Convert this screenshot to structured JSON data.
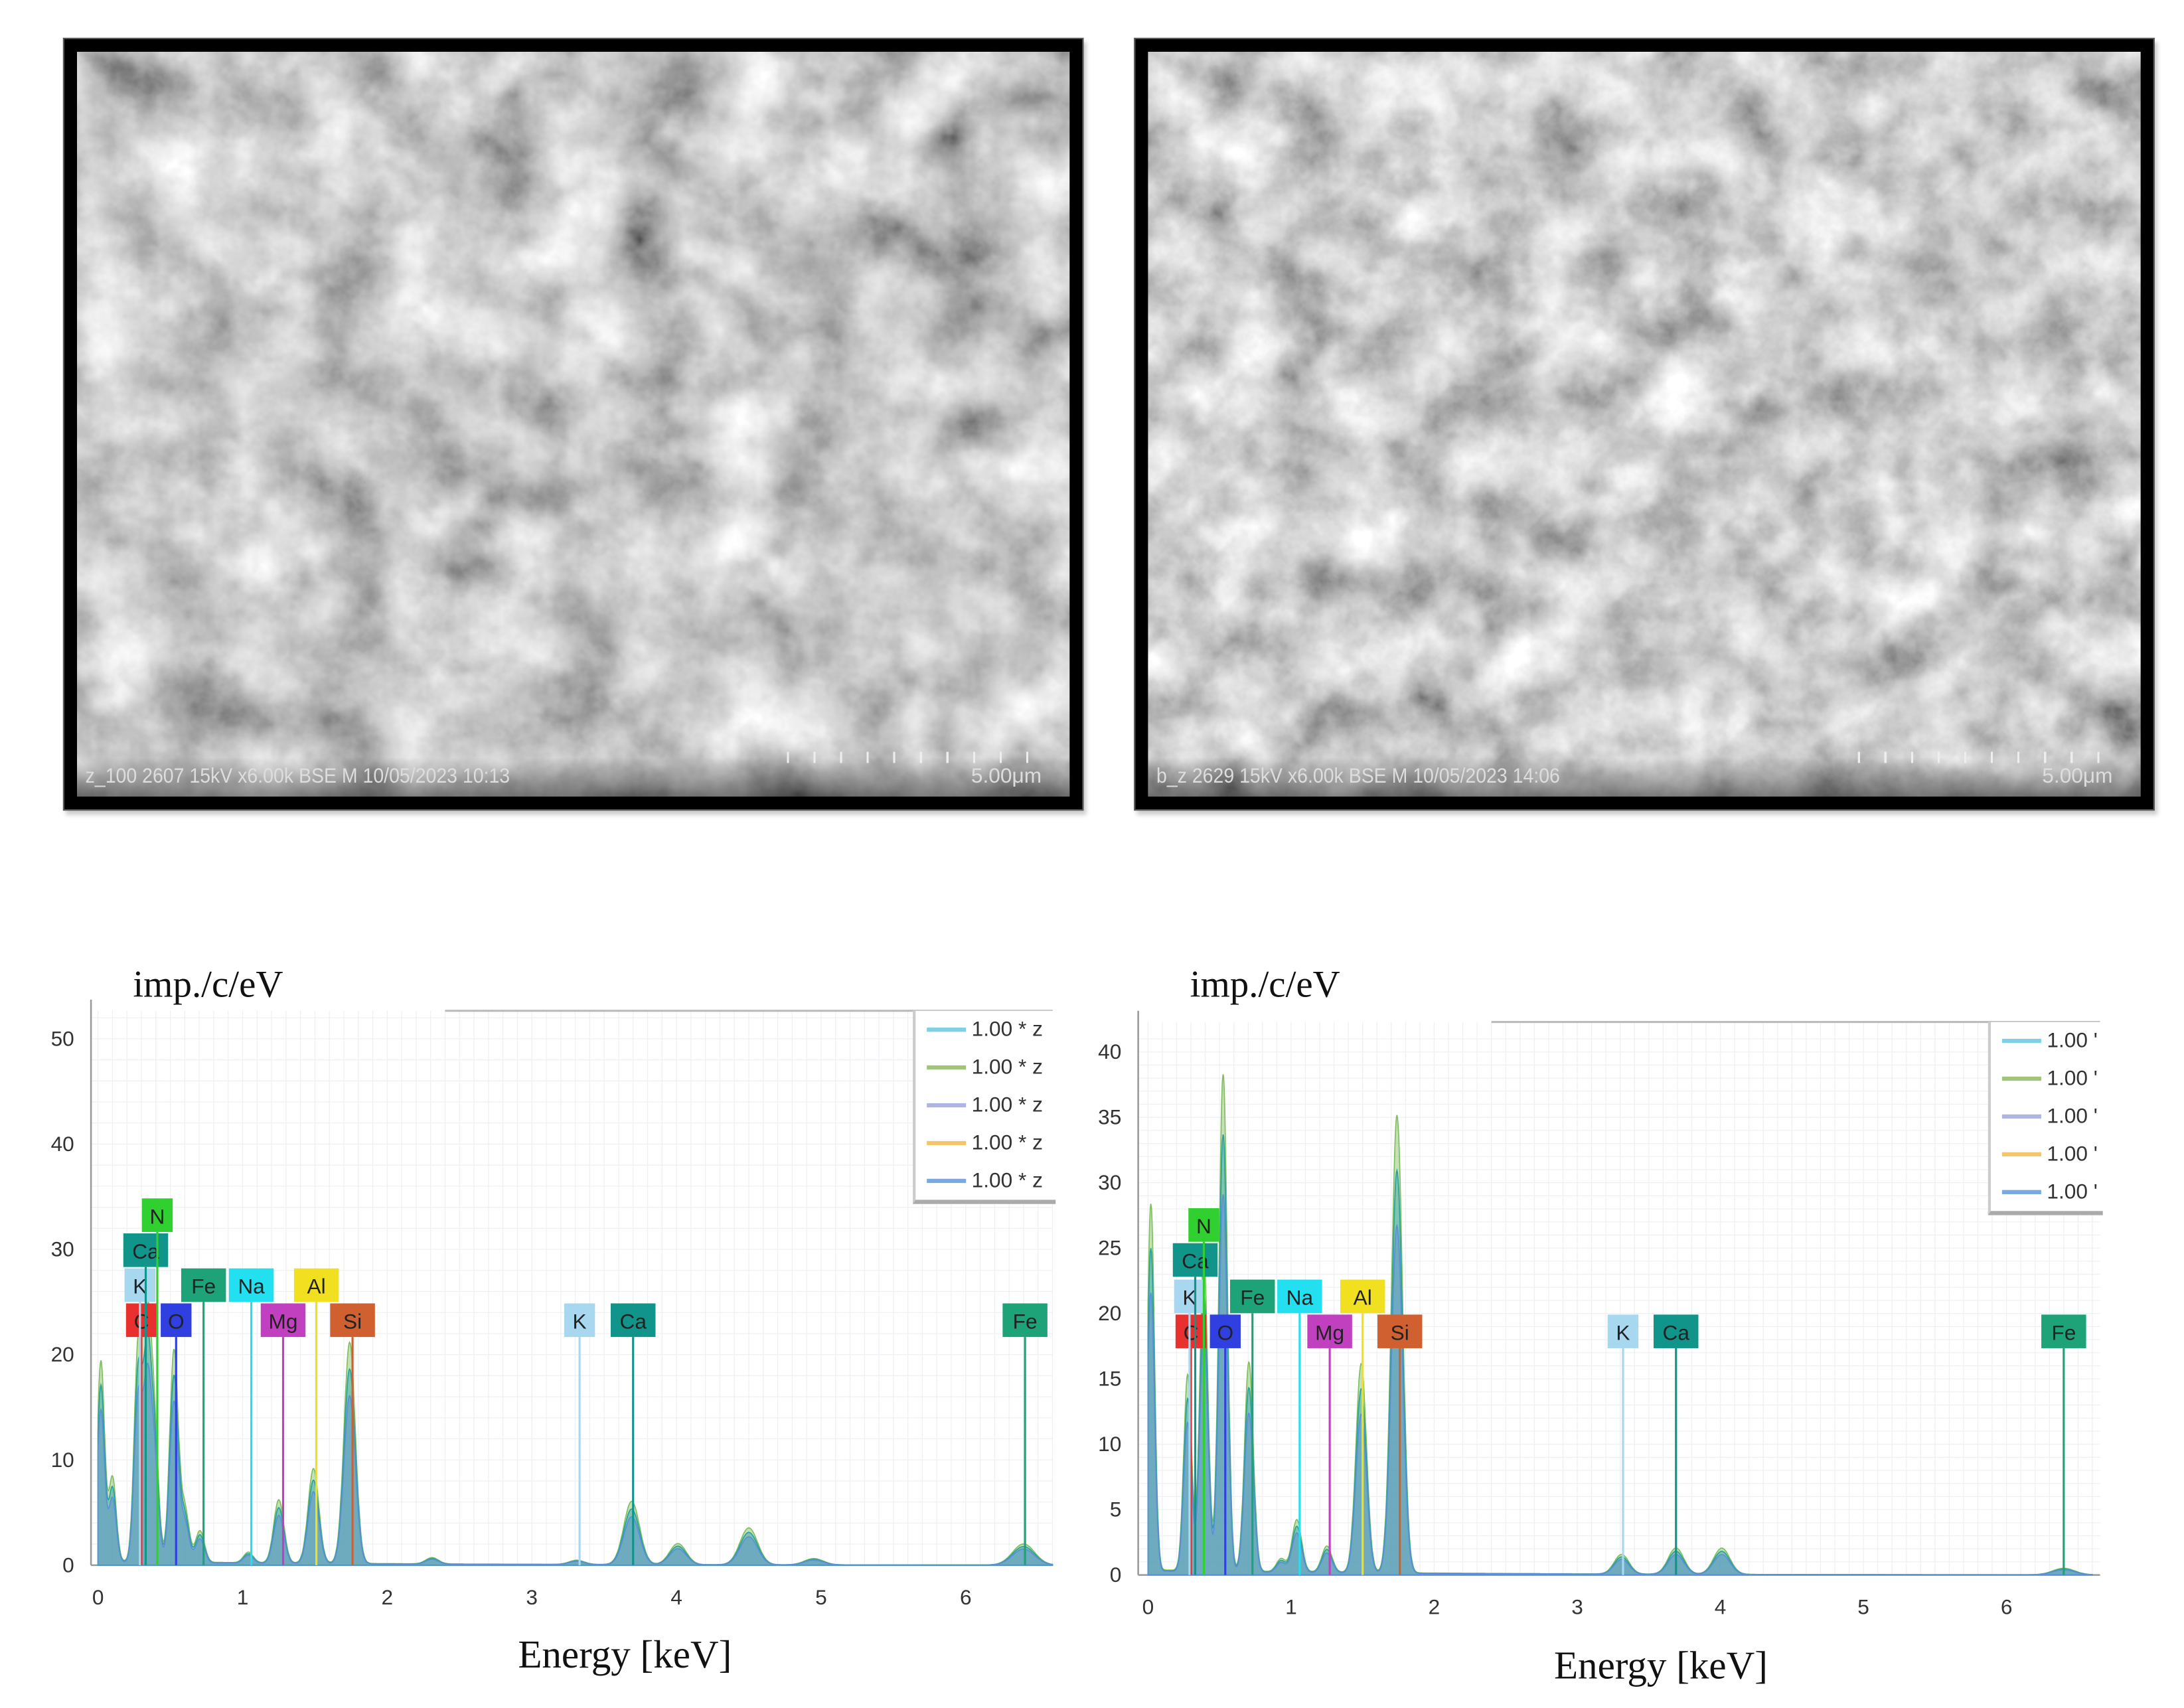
{
  "images": [
    {
      "caption": "z_100 2607 15kV x6.00k BSE M 10/05/2023 10:13",
      "scale_bar": "5.00μm",
      "seed": 3
    },
    {
      "caption": "b_z 2629 15kV x6.00k BSE M 10/05/2023 14:06",
      "scale_bar": "5.00μm",
      "seed": 11
    }
  ],
  "chart_data": [
    {
      "type": "line",
      "ylabel": "imp./c/eV",
      "xlabel": "Energy [keV]",
      "xlim": [
        0,
        6.6
      ],
      "ylim": [
        0,
        52
      ],
      "xticks": [
        0,
        1,
        2,
        3,
        4,
        5,
        6
      ],
      "yticks": [
        0,
        10,
        20,
        30,
        40,
        50
      ],
      "grid": true,
      "legend_position": "top-right",
      "legend": [
        "1.00 * z",
        "1.00 * z",
        "1.00 * z",
        "1.00 * z",
        "1.00 * z"
      ],
      "legend_colors": [
        "#7fd0e6",
        "#9fc47a",
        "#b0b4e0",
        "#f5c56b",
        "#7aa8e0"
      ],
      "peaks": [
        [
          0.02,
          19
        ],
        [
          0.1,
          8
        ],
        [
          0.277,
          20
        ],
        [
          0.34,
          21
        ],
        [
          0.39,
          12
        ],
        [
          0.525,
          20
        ],
        [
          0.6,
          5
        ],
        [
          0.705,
          3
        ],
        [
          1.04,
          1
        ],
        [
          1.25,
          6
        ],
        [
          1.49,
          9
        ],
        [
          1.74,
          21
        ],
        [
          2.31,
          0.6
        ],
        [
          3.31,
          0.4
        ],
        [
          3.69,
          6
        ],
        [
          4.01,
          2
        ],
        [
          4.5,
          3.5
        ],
        [
          4.95,
          0.6
        ],
        [
          6.4,
          2
        ]
      ],
      "markers": [
        {
          "element": "C",
          "energy": 0.3,
          "color": "#e8302e"
        },
        {
          "element": "O",
          "energy": 0.54,
          "color": "#2f3fe0"
        },
        {
          "element": "K",
          "energy": 0.29,
          "color": "#a8d8f0"
        },
        {
          "element": "Ca",
          "energy": 0.33,
          "color": "#11958a"
        },
        {
          "element": "N",
          "energy": 0.41,
          "color": "#30d030"
        },
        {
          "element": "Fe",
          "energy": 0.73,
          "color": "#1ea378"
        },
        {
          "element": "Na",
          "energy": 1.06,
          "color": "#22e0f0"
        },
        {
          "element": "Mg",
          "energy": 1.28,
          "color": "#c040c0"
        },
        {
          "element": "Al",
          "energy": 1.51,
          "color": "#f0e020"
        },
        {
          "element": "Si",
          "energy": 1.76,
          "color": "#d06030"
        },
        {
          "element": "K",
          "energy": 3.33,
          "color": "#a8d8f0"
        },
        {
          "element": "Ca",
          "energy": 3.7,
          "color": "#11958a"
        },
        {
          "element": "Fe",
          "energy": 6.41,
          "color": "#1ea378"
        }
      ]
    },
    {
      "type": "line",
      "ylabel": "imp./c/eV",
      "xlabel": "Energy [keV]",
      "xlim": [
        0,
        6.6
      ],
      "ylim": [
        0,
        41
      ],
      "xticks": [
        0,
        1,
        2,
        3,
        4,
        5,
        6
      ],
      "yticks": [
        0,
        5,
        10,
        15,
        20,
        25,
        30,
        35,
        40
      ],
      "grid": true,
      "legend_position": "top-right",
      "legend": [
        "1.00 '",
        "1.00 '",
        "1.00 '",
        "1.00 '",
        "1.00 '"
      ],
      "legend_colors": [
        "#7fd0e6",
        "#9fc47a",
        "#b0b4e0",
        "#f5c56b",
        "#7aa8e0"
      ],
      "peaks": [
        [
          0.02,
          28
        ],
        [
          0.277,
          15
        ],
        [
          0.39,
          24
        ],
        [
          0.525,
          38
        ],
        [
          0.705,
          16
        ],
        [
          0.93,
          1
        ],
        [
          1.04,
          4
        ],
        [
          1.25,
          2
        ],
        [
          1.49,
          16
        ],
        [
          1.74,
          35
        ],
        [
          3.31,
          1.5
        ],
        [
          3.69,
          2
        ],
        [
          4.01,
          2
        ],
        [
          6.4,
          0.5
        ]
      ],
      "markers": [
        {
          "element": "C",
          "energy": 0.3,
          "color": "#e8302e"
        },
        {
          "element": "O",
          "energy": 0.54,
          "color": "#2f3fe0"
        },
        {
          "element": "K",
          "energy": 0.29,
          "color": "#a8d8f0"
        },
        {
          "element": "Ca",
          "energy": 0.33,
          "color": "#11958a"
        },
        {
          "element": "N",
          "energy": 0.39,
          "color": "#30d030"
        },
        {
          "element": "Fe",
          "energy": 0.73,
          "color": "#1ea378"
        },
        {
          "element": "Na",
          "energy": 1.06,
          "color": "#22e0f0"
        },
        {
          "element": "Mg",
          "energy": 1.27,
          "color": "#c040c0"
        },
        {
          "element": "Al",
          "energy": 1.5,
          "color": "#f0e020"
        },
        {
          "element": "Si",
          "energy": 1.76,
          "color": "#d06030"
        },
        {
          "element": "K",
          "energy": 3.32,
          "color": "#a8d8f0"
        },
        {
          "element": "Ca",
          "energy": 3.69,
          "color": "#11958a"
        },
        {
          "element": "Fe",
          "energy": 6.4,
          "color": "#1ea378"
        }
      ]
    }
  ]
}
